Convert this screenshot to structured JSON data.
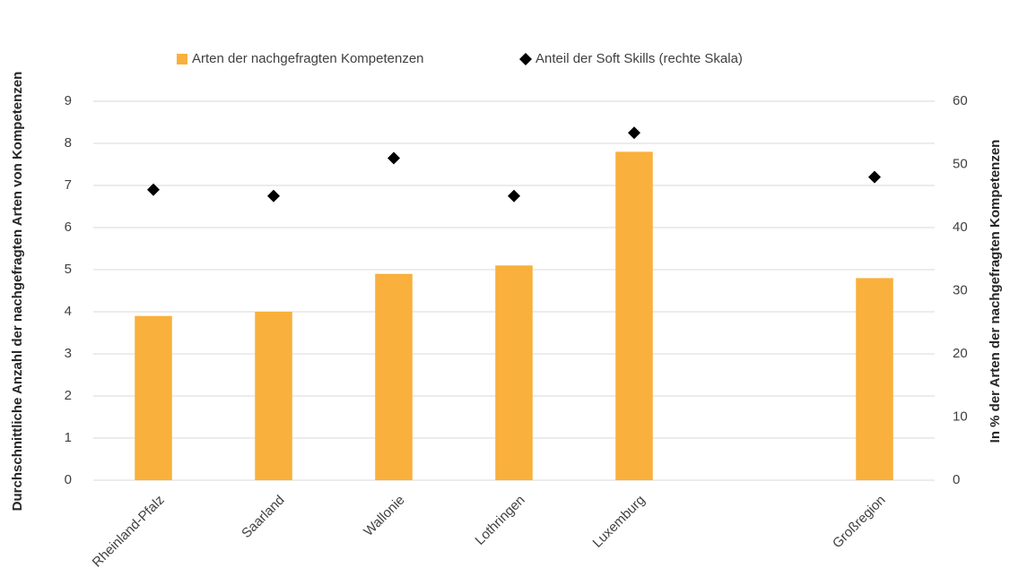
{
  "chart_data": {
    "type": "bar",
    "categories": [
      "Rheinland-Pfalz",
      "Saarland",
      "Wallonie",
      "Lothringen",
      "Luxemburg",
      null,
      "Großregion"
    ],
    "series": [
      {
        "name": "Arten der nachgefragten Kompetenzen",
        "type": "bar",
        "color": "#f9b03c",
        "values": [
          3.9,
          4.0,
          4.9,
          5.1,
          7.8,
          null,
          4.8
        ]
      },
      {
        "name": "Anteil der Soft Skills (rechte Skala)",
        "type": "scatter",
        "axis": "y2",
        "color": "#000000",
        "values": [
          46,
          45,
          51,
          45,
          55,
          null,
          48
        ]
      }
    ],
    "ylabel": "Durchschnittliche Anzahl der nachgefragten Arten von Kompetenzen",
    "y2label": "In % der Arten der nachgefragten Kompetenzen",
    "ylim": [
      0,
      9
    ],
    "yticks": [
      0,
      1,
      2,
      3,
      4,
      5,
      6,
      7,
      8,
      9
    ],
    "y2lim": [
      0,
      60
    ],
    "y2ticks": [
      0,
      10,
      20,
      30,
      40,
      50,
      60
    ],
    "grid": true,
    "legend": "top"
  }
}
